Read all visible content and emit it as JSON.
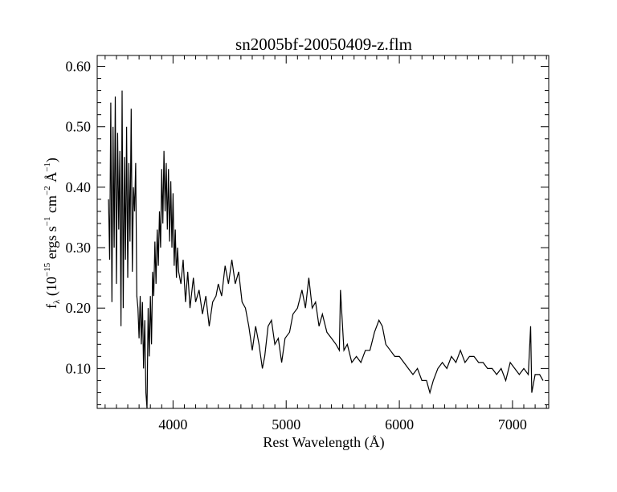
{
  "chart_data": {
    "type": "line",
    "title": "sn2005bf-20050409-z.flm",
    "xlabel": "Rest Wavelength (Å)",
    "ylabel": {
      "main": "f",
      "sub": "λ",
      "text1": " (10",
      "exp1": "−15",
      "text2": " ergs s",
      "exp2": "−1",
      "text3": " cm",
      "exp3": "−2",
      "text4": " Å",
      "exp4": "−1",
      "text5": ")"
    },
    "xlim": [
      3330,
      7320
    ],
    "ylim": [
      0.034,
      0.618
    ],
    "xticks": [
      4000,
      5000,
      6000,
      7000
    ],
    "xtick_labels": [
      "4000",
      "5000",
      "6000",
      "7000"
    ],
    "yticks": [
      0.1,
      0.2,
      0.3,
      0.4,
      0.5,
      0.6
    ],
    "ytick_labels": [
      "0.10",
      "0.20",
      "0.30",
      "0.40",
      "0.50",
      "0.60"
    ],
    "grid": false,
    "line_color": "#000000",
    "series": [
      {
        "x": [
          3430,
          3440,
          3450,
          3460,
          3470,
          3480,
          3490,
          3500,
          3510,
          3520,
          3530,
          3540,
          3550,
          3560,
          3570,
          3580,
          3590,
          3600,
          3610,
          3620,
          3630,
          3640,
          3650,
          3660,
          3670,
          3680,
          3690,
          3700,
          3710,
          3720,
          3730,
          3740,
          3750,
          3760,
          3770,
          3780,
          3790,
          3800,
          3810,
          3820,
          3830,
          3840,
          3850,
          3860,
          3870,
          3880,
          3890,
          3900,
          3910,
          3920,
          3930,
          3940,
          3950,
          3960,
          3970,
          3980,
          3990,
          4000,
          4010,
          4020,
          4030,
          4040,
          4050,
          4070,
          4090,
          4110,
          4130,
          4150,
          4180,
          4200,
          4230,
          4260,
          4290,
          4320,
          4350,
          4380,
          4400,
          4430,
          4460,
          4490,
          4520,
          4550,
          4580,
          4610,
          4640,
          4670,
          4700,
          4730,
          4760,
          4790,
          4810,
          4840,
          4870,
          4900,
          4930,
          4960,
          4990,
          5030,
          5060,
          5100,
          5140,
          5170,
          5200,
          5230,
          5260,
          5290,
          5320,
          5360,
          5400,
          5440,
          5470,
          5480,
          5510,
          5540,
          5580,
          5620,
          5660,
          5700,
          5740,
          5780,
          5820,
          5850,
          5880,
          5920,
          5960,
          6000,
          6040,
          6080,
          6120,
          6160,
          6200,
          6240,
          6270,
          6300,
          6340,
          6380,
          6420,
          6460,
          6500,
          6540,
          6580,
          6620,
          6660,
          6700,
          6740,
          6780,
          6820,
          6860,
          6900,
          6940,
          6980,
          7020,
          7060,
          7100,
          7140,
          7160,
          7170,
          7200,
          7240,
          7270
        ],
        "y": [
          0.38,
          0.28,
          0.54,
          0.21,
          0.5,
          0.3,
          0.55,
          0.24,
          0.49,
          0.33,
          0.46,
          0.17,
          0.56,
          0.2,
          0.45,
          0.28,
          0.5,
          0.25,
          0.44,
          0.31,
          0.53,
          0.26,
          0.4,
          0.36,
          0.44,
          0.22,
          0.2,
          0.15,
          0.22,
          0.14,
          0.21,
          0.1,
          0.18,
          0.06,
          0.03,
          0.2,
          0.12,
          0.22,
          0.14,
          0.26,
          0.22,
          0.31,
          0.24,
          0.33,
          0.27,
          0.36,
          0.3,
          0.43,
          0.34,
          0.46,
          0.36,
          0.44,
          0.33,
          0.43,
          0.31,
          0.41,
          0.3,
          0.39,
          0.27,
          0.33,
          0.25,
          0.3,
          0.26,
          0.24,
          0.28,
          0.21,
          0.26,
          0.2,
          0.25,
          0.21,
          0.23,
          0.19,
          0.22,
          0.17,
          0.21,
          0.22,
          0.24,
          0.22,
          0.27,
          0.24,
          0.28,
          0.24,
          0.26,
          0.21,
          0.2,
          0.17,
          0.13,
          0.17,
          0.14,
          0.1,
          0.12,
          0.17,
          0.18,
          0.14,
          0.15,
          0.11,
          0.15,
          0.16,
          0.19,
          0.2,
          0.23,
          0.2,
          0.25,
          0.2,
          0.21,
          0.17,
          0.19,
          0.16,
          0.15,
          0.14,
          0.13,
          0.23,
          0.13,
          0.14,
          0.11,
          0.12,
          0.11,
          0.13,
          0.13,
          0.16,
          0.18,
          0.17,
          0.14,
          0.13,
          0.12,
          0.12,
          0.11,
          0.1,
          0.09,
          0.1,
          0.08,
          0.08,
          0.06,
          0.08,
          0.1,
          0.11,
          0.1,
          0.12,
          0.11,
          0.13,
          0.11,
          0.12,
          0.12,
          0.11,
          0.11,
          0.1,
          0.1,
          0.09,
          0.1,
          0.08,
          0.11,
          0.1,
          0.09,
          0.1,
          0.09,
          0.17,
          0.06,
          0.09,
          0.09,
          0.08
        ]
      }
    ]
  }
}
